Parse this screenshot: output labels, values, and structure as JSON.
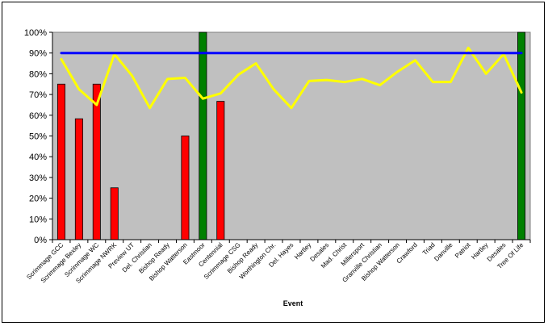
{
  "chart_data": {
    "type": "bar",
    "title": "",
    "xlabel": "Event",
    "ylabel": "",
    "ylim": [
      0,
      100
    ],
    "y_ticks": [
      "0%",
      "10%",
      "20%",
      "30%",
      "40%",
      "50%",
      "60%",
      "70%",
      "80%",
      "90%",
      "100%"
    ],
    "grid": false,
    "legend": "none",
    "plot_background": "#c0c0c0",
    "categories": [
      "Scrimmage GCC",
      "Scrimmage Bexley",
      "Scrimmage WC",
      "Scrimmage NWRK",
      "Preview UT",
      "Del. Christian",
      "Bishop Ready",
      "Bishop Watterson",
      "Eastmoor",
      "Centennial",
      "Scrimmage CSG",
      "Bishop Ready",
      "Worthington Chr.",
      "Del. Hayes",
      "Hartley",
      "Desales",
      "Mad. Christ",
      "Millersport",
      "Granville Christian",
      "Bishop Watterson",
      "Crawford",
      "Triad",
      "Danville",
      "Patriot",
      "Hartley",
      "Desales",
      "Tree Of Life"
    ],
    "series": [
      {
        "type": "bar",
        "color": "#ff0000",
        "values": [
          75,
          58.3,
          75,
          25,
          0,
          0,
          0,
          50,
          0,
          66.7,
          0,
          0,
          0,
          0,
          0,
          0,
          0,
          0,
          0,
          0,
          0,
          0,
          0,
          0,
          0,
          0,
          0
        ]
      },
      {
        "type": "bar",
        "color": "#008000",
        "values": [
          0,
          0,
          0,
          0,
          0,
          0,
          0,
          0,
          100,
          0,
          0,
          0,
          0,
          0,
          0,
          0,
          0,
          0,
          0,
          0,
          0,
          0,
          0,
          0,
          0,
          0,
          100
        ]
      },
      {
        "type": "line",
        "color": "#ffff00",
        "values": [
          87,
          72.5,
          65,
          89.5,
          79,
          63.5,
          77.5,
          78,
          68,
          70.5,
          79.5,
          85,
          72.5,
          63.5,
          76.5,
          77,
          76,
          77.5,
          74.5,
          81,
          86.5,
          76,
          76,
          92.5,
          80,
          89.5,
          71
        ]
      },
      {
        "type": "line",
        "color": "#0000ff",
        "values": [
          90,
          90,
          90,
          90,
          90,
          90,
          90,
          90,
          90,
          90,
          90,
          90,
          90,
          90,
          90,
          90,
          90,
          90,
          90,
          90,
          90,
          90,
          90,
          90,
          90,
          90,
          90
        ]
      }
    ]
  }
}
